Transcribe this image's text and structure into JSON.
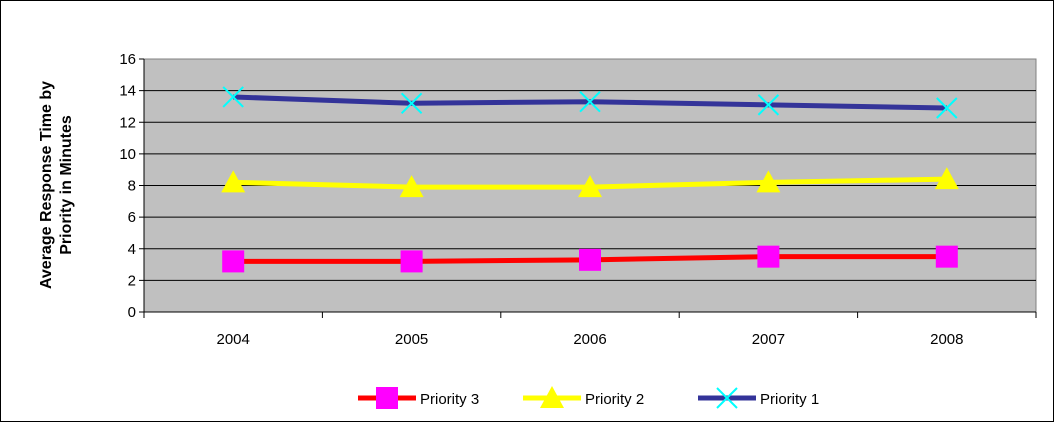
{
  "chart_data": {
    "type": "line",
    "title": "",
    "xlabel": "",
    "ylabel_lines": [
      "Average Response Time by",
      "Priority in Minutes"
    ],
    "categories": [
      "2004",
      "2005",
      "2006",
      "2007",
      "2008"
    ],
    "ylim": [
      0,
      16
    ],
    "yticks": [
      "0",
      "2",
      "4",
      "6",
      "8",
      "10",
      "12",
      "14",
      "16"
    ],
    "grid": true,
    "legend_position": "bottom",
    "plot_background": "#c0c0c0",
    "series": [
      {
        "name": "Priority 3",
        "values": [
          3.2,
          3.2,
          3.3,
          3.5,
          3.5
        ],
        "line_color": "#ff0000",
        "marker": "square",
        "marker_color": "#ff00ff"
      },
      {
        "name": "Priority 2",
        "values": [
          8.2,
          7.9,
          7.9,
          8.2,
          8.4
        ],
        "line_color": "#ffff00",
        "marker": "triangle",
        "marker_color": "#ffff00"
      },
      {
        "name": "Priority 1",
        "values": [
          13.6,
          13.2,
          13.3,
          13.1,
          12.9
        ],
        "line_color": "#333399",
        "marker": "x",
        "marker_color": "#00ffff"
      }
    ]
  }
}
